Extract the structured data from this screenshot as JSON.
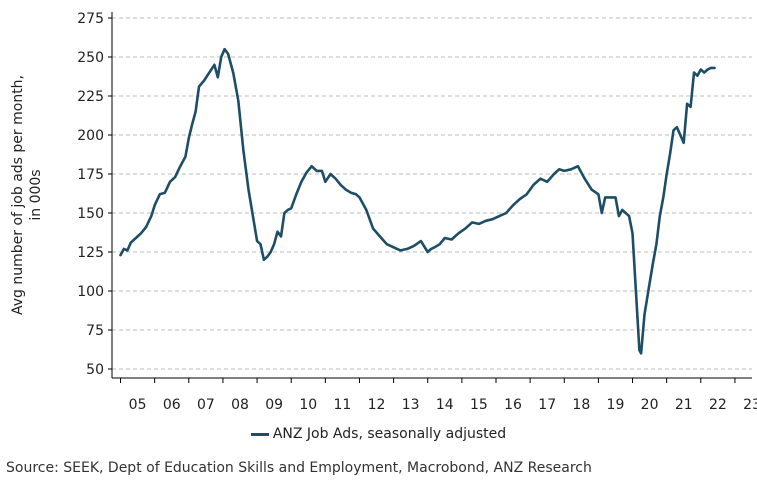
{
  "chart_data": {
    "type": "line",
    "title": "",
    "ylabel_lines": [
      "Avg number of job ads per month,",
      "in 000s"
    ],
    "xlabel": "",
    "ylim": [
      50,
      275
    ],
    "yticks": [
      50,
      75,
      100,
      125,
      150,
      175,
      200,
      225,
      250,
      275
    ],
    "xlim": [
      2004.75,
      2023.5
    ],
    "xtick_labels": [
      "05",
      "06",
      "07",
      "08",
      "09",
      "10",
      "11",
      "12",
      "13",
      "14",
      "15",
      "16",
      "17",
      "18",
      "19",
      "20",
      "21",
      "22",
      "23"
    ],
    "grid": "horizontal-dashed",
    "legend": "bottom-center",
    "series": [
      {
        "name": "ANZ Job Ads, seasonally adjusted",
        "color": "#1d4e66",
        "x": [
          2005.0,
          2005.1,
          2005.2,
          2005.3,
          2005.45,
          2005.6,
          2005.75,
          2005.9,
          2006.0,
          2006.15,
          2006.3,
          2006.45,
          2006.6,
          2006.75,
          2006.9,
          2007.0,
          2007.1,
          2007.2,
          2007.3,
          2007.45,
          2007.6,
          2007.75,
          2007.85,
          2007.95,
          2008.05,
          2008.15,
          2008.3,
          2008.45,
          2008.6,
          2008.75,
          2008.9,
          2009.0,
          2009.1,
          2009.2,
          2009.3,
          2009.4,
          2009.5,
          2009.6,
          2009.7,
          2009.8,
          2009.9,
          2010.0,
          2010.15,
          2010.3,
          2010.45,
          2010.6,
          2010.75,
          2010.9,
          2011.0,
          2011.15,
          2011.3,
          2011.45,
          2011.6,
          2011.75,
          2011.9,
          2012.0,
          2012.2,
          2012.4,
          2012.6,
          2012.8,
          2013.0,
          2013.2,
          2013.4,
          2013.6,
          2013.8,
          2014.0,
          2014.1,
          2014.2,
          2014.35,
          2014.5,
          2014.7,
          2014.9,
          2015.1,
          2015.3,
          2015.5,
          2015.7,
          2015.9,
          2016.1,
          2016.3,
          2016.5,
          2016.7,
          2016.9,
          2017.1,
          2017.3,
          2017.5,
          2017.7,
          2017.85,
          2018.0,
          2018.2,
          2018.4,
          2018.6,
          2018.8,
          2019.0,
          2019.1,
          2019.2,
          2019.35,
          2019.5,
          2019.6,
          2019.7,
          2019.8,
          2019.9,
          2020.0,
          2020.1,
          2020.2,
          2020.25,
          2020.35,
          2020.5,
          2020.6,
          2020.7,
          2020.8,
          2020.9,
          2021.0,
          2021.1,
          2021.2,
          2021.3,
          2021.4,
          2021.5,
          2021.6,
          2021.7,
          2021.8,
          2021.9,
          2022.0,
          2022.1,
          2022.2,
          2022.3,
          2022.4
        ],
        "values": [
          123,
          127,
          126,
          131,
          134,
          137,
          141,
          148,
          155,
          162,
          163,
          170,
          173,
          180,
          186,
          198,
          207,
          215,
          231,
          235,
          240,
          245,
          237,
          250,
          255,
          252,
          240,
          222,
          190,
          165,
          145,
          132,
          130,
          120,
          122,
          125,
          130,
          138,
          135,
          150,
          152,
          153,
          162,
          170,
          176,
          180,
          177,
          177,
          170,
          175,
          172,
          168,
          165,
          163,
          162,
          160,
          152,
          140,
          135,
          130,
          128,
          126,
          127,
          129,
          132,
          125,
          127,
          128,
          130,
          134,
          133,
          137,
          140,
          144,
          143,
          145,
          146,
          148,
          150,
          155,
          159,
          162,
          168,
          172,
          170,
          175,
          178,
          177,
          178,
          180,
          172,
          165,
          162,
          150,
          160,
          160,
          160,
          148,
          152,
          150,
          148,
          137,
          100,
          62,
          60,
          85,
          105,
          118,
          130,
          148,
          160,
          175,
          188,
          203,
          205,
          200,
          195,
          220,
          218,
          240,
          238,
          242,
          240,
          242,
          243,
          243
        ]
      }
    ]
  },
  "legend_label": "ANZ Job Ads, seasonally adjusted",
  "source": "Source: SEEK, Dept of Education Skills and Employment, Macrobond, ANZ Research"
}
